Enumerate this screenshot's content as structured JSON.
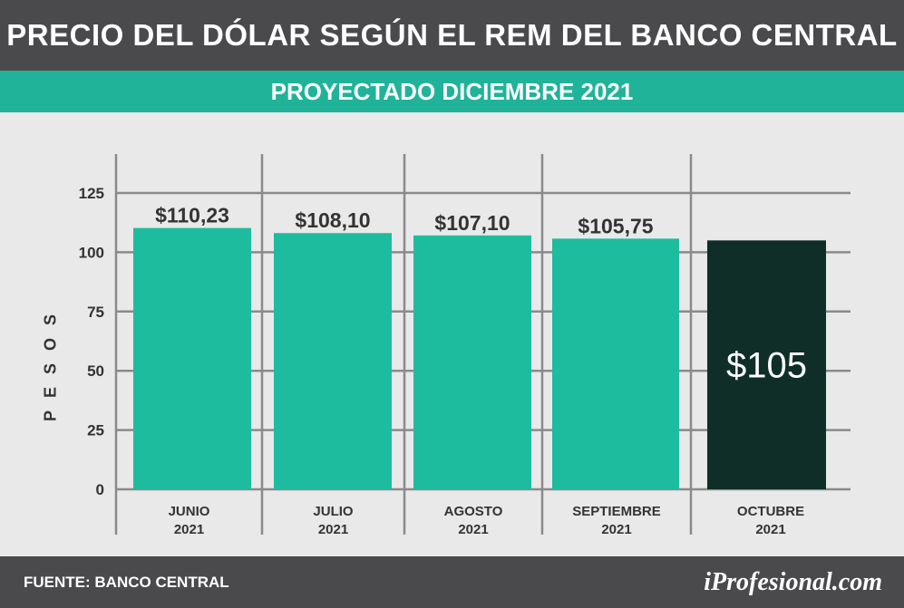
{
  "header": {
    "title": "PRECIO DEL DÓLAR SEGÚN EL REM DEL BANCO CENTRAL"
  },
  "subheader": {
    "title": "PROYECTADO DICIEMBRE 2021"
  },
  "footer": {
    "source": "FUENTE: BANCO CENTRAL",
    "brand": "iProfesional.com"
  },
  "colors": {
    "header_bg": "#4a4a4c",
    "accent": "#20b39a",
    "bar": "#1ebc9e",
    "highlight_bar": "#0f2e28",
    "background": "#e9e9ea",
    "grid": "#8a8a8c"
  },
  "chart_data": {
    "type": "bar",
    "categories": [
      [
        "JUNIO",
        "2021"
      ],
      [
        "JULIO",
        "2021"
      ],
      [
        "AGOSTO",
        "2021"
      ],
      [
        "SEPTIEMBRE",
        "2021"
      ],
      [
        "OCTUBRE",
        "2021"
      ]
    ],
    "values": [
      110.23,
      108.1,
      107.1,
      105.75,
      105
    ],
    "value_labels": [
      "$110,23",
      "$108,10",
      "$107,10",
      "$105,75",
      "$105"
    ],
    "highlight_index": 4,
    "ylabel": "PESOS",
    "yticks": [
      0,
      25,
      50,
      75,
      100,
      125
    ],
    "ylim": [
      0,
      125
    ],
    "grid": true
  }
}
